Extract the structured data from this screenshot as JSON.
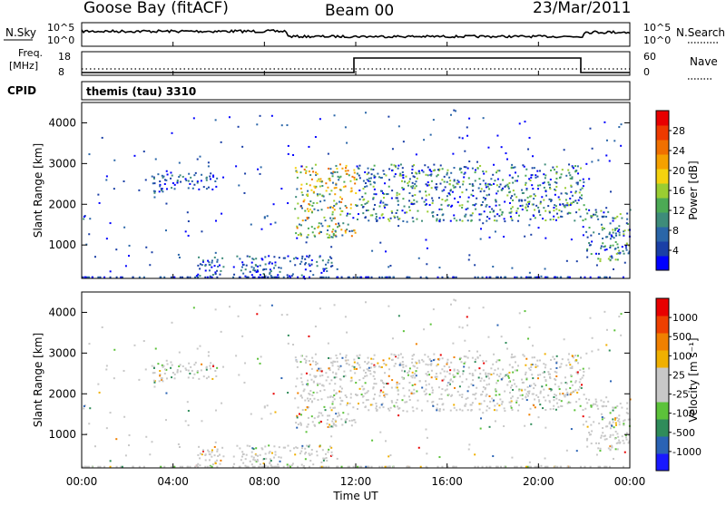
{
  "header": {
    "station": "Goose Bay (fitACF)",
    "beam": "Beam 00",
    "date": "23/Mar/2011"
  },
  "status_panels": {
    "nsky_label": "N.Sky",
    "nsky_ticks": [
      "10^5",
      "10^0"
    ],
    "nsearch_label": "N.Search",
    "nsearch_ticks": [
      "10^5",
      "10^0"
    ],
    "freq_label_line1": "Freq.",
    "freq_label_line2": "[MHz]",
    "freq_ticks": [
      "18",
      "8"
    ],
    "nave_label": "Nave",
    "nave_ticks": [
      "60",
      "0"
    ],
    "cpid_label": "CPID",
    "cpid_text": "themis (tau) 3310"
  },
  "colorbars": {
    "power": {
      "label": "Power [dB]",
      "ticks": [
        "28",
        "24",
        "20",
        "16",
        "12",
        "8",
        "4"
      ],
      "colors": [
        "#0000ff",
        "#1a3fa6",
        "#2a66a8",
        "#3e8c7a",
        "#4caa55",
        "#9acd32",
        "#f4d20f",
        "#f5a100",
        "#f07000",
        "#ee3a00",
        "#e80000"
      ]
    },
    "velocity": {
      "label": "Velocity [m s⁻¹]",
      "ticks": [
        "1000",
        "500",
        "100",
        "25",
        "-25",
        "-100",
        "-500",
        "-1000"
      ],
      "colors": [
        "#1919ff",
        "#2a63b5",
        "#2f8c5a",
        "#5cc23a",
        "#c8c8c8",
        "#c8c8c8",
        "#f0b000",
        "#f08000",
        "#ee4000",
        "#e80000"
      ]
    }
  },
  "chart_data": [
    {
      "type": "heatmap",
      "title": "Power",
      "ylabel": "Slant Range [km]",
      "yticks": [
        "4000",
        "3000",
        "2000",
        "1000"
      ],
      "ylim": [
        180,
        4500
      ],
      "xlim": [
        "00:00",
        "24:00"
      ],
      "colorbar_label": "Power [dB]",
      "regions": [
        {
          "t_start": 0.0,
          "t_end": 0.4,
          "r_start": 1600,
          "r_end": 1800,
          "level": "low"
        },
        {
          "t_start": 3.0,
          "t_end": 6.0,
          "r_start": 2300,
          "r_end": 2800,
          "level": "low"
        },
        {
          "t_start": 9.3,
          "t_end": 12.0,
          "r_start": 1200,
          "r_end": 3000,
          "level": "high"
        },
        {
          "t_start": 12.0,
          "t_end": 22.0,
          "r_start": 1600,
          "r_end": 3000,
          "level": "medium"
        },
        {
          "t_start": 22.0,
          "t_end": 24.0,
          "r_start": 600,
          "r_end": 1900,
          "level": "medium"
        },
        {
          "t_start": 5.0,
          "t_end": 11.0,
          "r_start": 250,
          "r_end": 750,
          "level": "low"
        }
      ]
    },
    {
      "type": "heatmap",
      "title": "Velocity",
      "ylabel": "Slant Range [km]",
      "yticks": [
        "4000",
        "3000",
        "2000",
        "1000"
      ],
      "ylim": [
        180,
        4500
      ],
      "xlim": [
        "00:00",
        "24:00"
      ],
      "xticks": [
        "00:00",
        "04:00",
        "08:00",
        "12:00",
        "16:00",
        "20:00",
        "00:00"
      ],
      "xlabel": "Time UT",
      "colorbar_label": "Velocity [m s⁻¹]"
    }
  ]
}
